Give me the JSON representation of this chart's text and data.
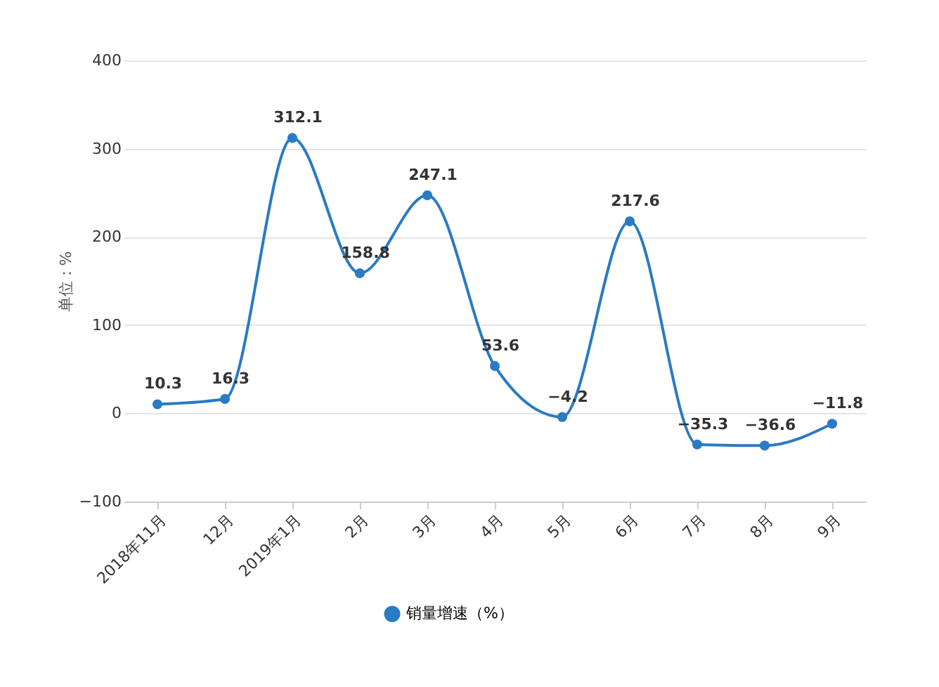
{
  "chart_data": {
    "type": "line",
    "ylabel": "单位：%",
    "categories": [
      "2018年11月",
      "12月",
      "2019年1月",
      "2月",
      "3月",
      "4月",
      "5月",
      "6月",
      "7月",
      "8月",
      "9月"
    ],
    "series": [
      {
        "name": "销量增速（%）",
        "color": "#2a7ac4",
        "values": [
          10.3,
          16.3,
          312.1,
          158.8,
          247.1,
          53.6,
          -4.2,
          217.6,
          -35.3,
          -36.6,
          -11.8
        ]
      }
    ],
    "ylim": [
      -100,
      400
    ],
    "yticks": [
      -100,
      0,
      100,
      200,
      300,
      400
    ],
    "grid": "y",
    "legend": "bottom",
    "marker": "circle",
    "line_style": "solid",
    "data_labels": true
  }
}
